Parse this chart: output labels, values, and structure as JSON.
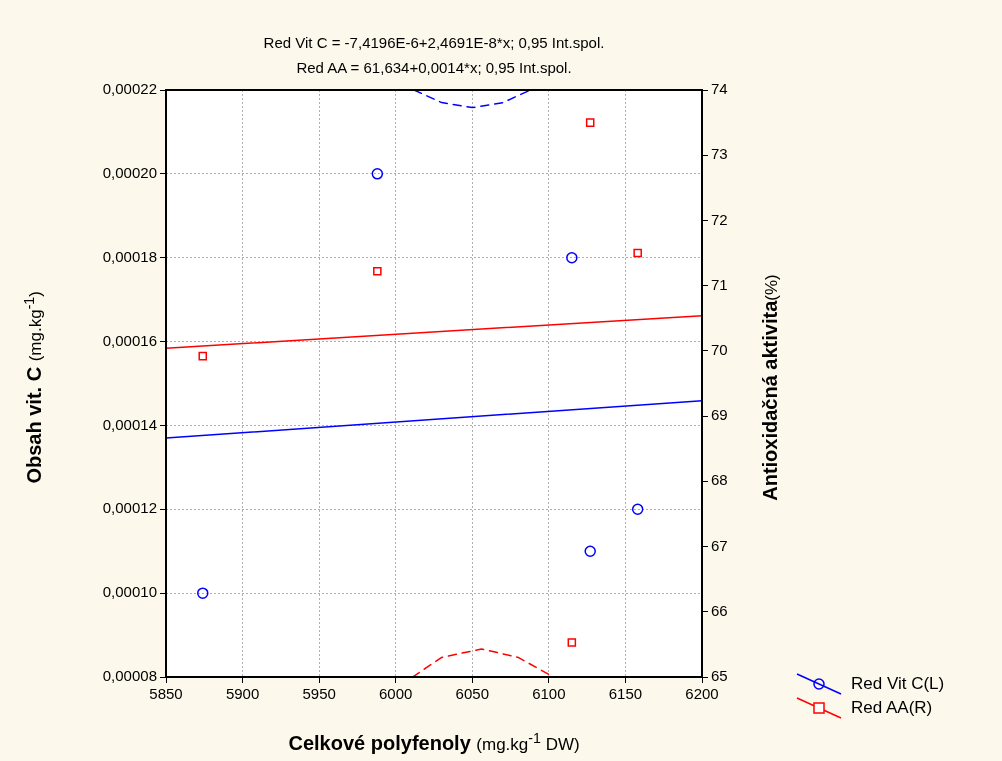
{
  "chart_data": {
    "type": "scatter",
    "title": "Red Vit C = -7,4196E-6+2,4691E-8*x; 0,95 Int.spol.",
    "subtitle": "Red AA = 61,634+0,0014*x; 0,95 Int.spol.",
    "xlabel": "Celkové polyfenoly (mg.kg$^{-1}$ DW)",
    "ylabel": "Obsah vit. C (mg.kg$^{-1}$)",
    "y2label": "Antioxidačná aktivita(%)",
    "xlim": [
      5850,
      6200
    ],
    "xticks": [
      5850,
      5900,
      5950,
      6000,
      6050,
      6100,
      6150,
      6200
    ],
    "ylim": [
      8e-05,
      0.00022
    ],
    "yticks": [
      {
        "value": 8e-05,
        "label": "0,00008"
      },
      {
        "value": 0.0001,
        "label": "0,00010"
      },
      {
        "value": 0.00012,
        "label": "0,00012"
      },
      {
        "value": 0.00014,
        "label": "0,00014"
      },
      {
        "value": 0.00016,
        "label": "0,00016"
      },
      {
        "value": 0.00018,
        "label": "0,00018"
      },
      {
        "value": 0.0002,
        "label": "0,00020"
      },
      {
        "value": 0.00022,
        "label": "0,00022"
      }
    ],
    "y2lim": [
      65,
      74
    ],
    "y2ticks": [
      65,
      66,
      67,
      68,
      69,
      70,
      71,
      72,
      73,
      74
    ],
    "grid": true,
    "legend": "bottom right",
    "series": [
      {
        "name": "Red Vit C(L)",
        "type": "scatter",
        "marker": "circle",
        "color": "#0000ff",
        "x": [
          5874,
          5988,
          6115,
          6127,
          6158
        ],
        "values": [
          0.0001,
          0.0002,
          0.00018,
          0.00011,
          0.00012
        ]
      },
      {
        "name": "Red AA(R)",
        "type": "scatter",
        "marker": "square",
        "axis": "y2",
        "color": "#ff0000",
        "x": [
          5874,
          5988,
          6115,
          6127,
          6158
        ],
        "values": [
          69.92,
          71.22,
          65.53,
          73.5,
          71.5
        ]
      },
      {
        "type": "line",
        "marker": "none",
        "line_style": "solid",
        "color": "#0000ff",
        "x": [
          5850,
          6200
        ],
        "values": [
          0.000137,
          0.0001459
        ]
      },
      {
        "type": "line",
        "marker": "none",
        "line_style": "solid",
        "axis": "y2",
        "color": "#ff0000",
        "x": [
          5850,
          6200
        ],
        "values": [
          70.04,
          70.54
        ]
      },
      {
        "type": "line",
        "marker": "none",
        "line_style": "dashed",
        "color": "#0000ff",
        "x": [
          6012,
          6030,
          6050,
          6070,
          6088
        ],
        "values": [
          0.00022,
          0.000217,
          0.0002158,
          0.000217,
          0.00022
        ]
      },
      {
        "type": "line",
        "marker": "none",
        "line_style": "dashed",
        "axis": "y2",
        "color": "#ff0000",
        "x": [
          6011,
          6030,
          6056,
          6080,
          6103
        ],
        "values": [
          65,
          65.3,
          65.43,
          65.3,
          65
        ]
      }
    ]
  }
}
